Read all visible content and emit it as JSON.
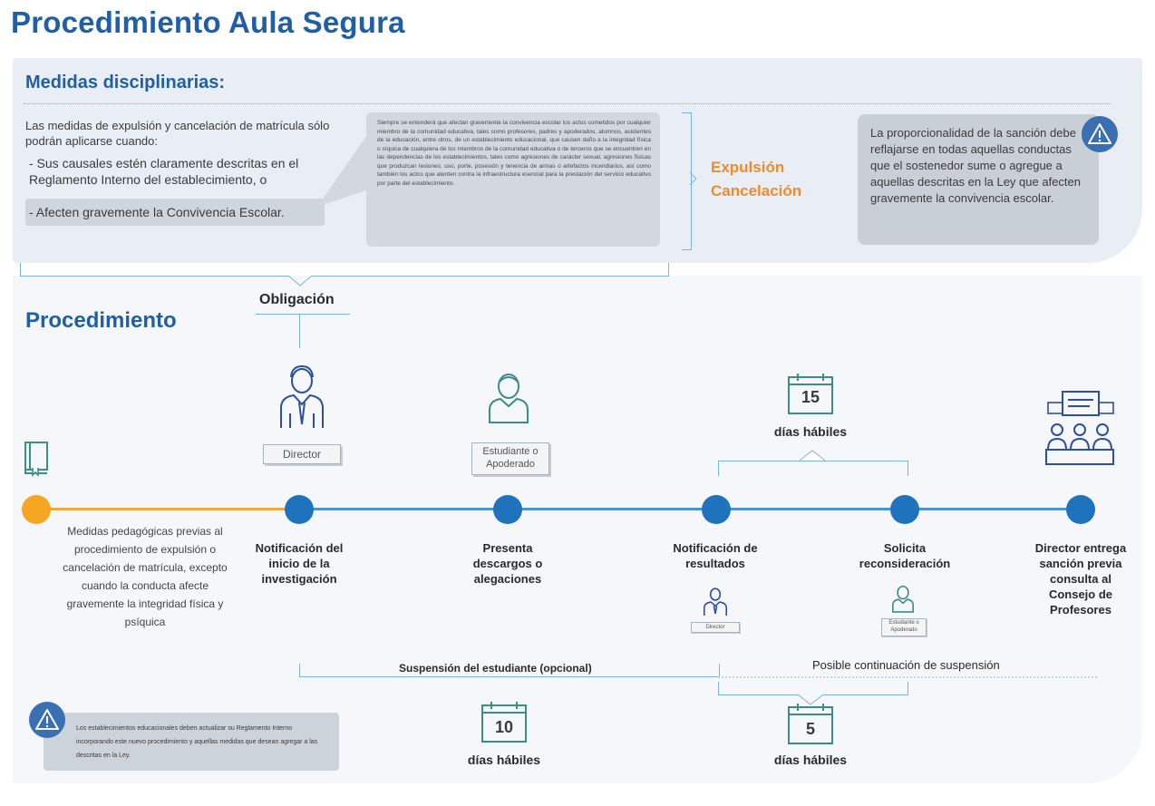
{
  "title": "Procedimiento Aula Segura",
  "medidas": {
    "heading": "Medidas disciplinarias:",
    "intro": "Las medidas de expulsión y cancelación de matrícula sólo podrán aplicarse cuando:",
    "condition1": "- Sus causales estén claramente descritas en el Reglamento Interno del establecimiento, o",
    "condition2": "- Afecten gravemente la Convivencia Escolar.",
    "definition": "Siempre se entenderá que afectan gravemente la convivencia escolar los actos cometidos por cualquier miembro de la comunidad educativa, tales como profesores, padres y apoderados, alumnos, asistentes de la educación, entre otros, de un establecimiento educacional, que causen daño a la integridad física o síquica de cualquiera de los miembros de la comunidad educativa o de terceros que se encuentren en las dependencias de los establecimientos, tales como agresiones de carácter sexual, agresiones físicas que produzcan lesiones, uso, porte, posesión y tenencia de armas o artefactos incendiarios, así como también los actos que atenten contra la infraestructura esencial para la prestación del servicio educativo por parte del establecimiento.",
    "outcome_line1": "Expulsión",
    "outcome_line2": "Cancelación",
    "proportionality": "La proporcionalidad de la sanción debe reflajarse en todas aquellas conductas que el sostenedor sume o agregue a aquellas descritas en la Ley que afecten gravemente la convivencia escolar."
  },
  "obligacion": "Obligación",
  "procedimiento": {
    "heading": "Procedimiento",
    "previous_measures": "Medidas pedagógicas previas al procedimiento de expulsión o cancelación de matrícula, excepto cuando la conducta afecte gravemente la integridad física y psíquica",
    "roles": {
      "director": "Director",
      "estudiante_l1": "Estudiante o",
      "estudiante_l2": "Apoderado"
    },
    "steps": [
      {
        "l1": "Notificación del",
        "l2": "inicio de la",
        "l3": "investigación"
      },
      {
        "l1": "Presenta",
        "l2": "descargos o",
        "l3": "alegaciones"
      },
      {
        "l1": "Notificación de",
        "l2": "resultados",
        "l3": ""
      },
      {
        "l1": "Solicita",
        "l2": "reconsideración",
        "l3": ""
      },
      {
        "l1": "Director entrega",
        "l2": "sanción previa",
        "l3": "consulta al",
        "l4": "Consejo de",
        "l5": "Profesores"
      }
    ],
    "deadlines": [
      {
        "number": "15",
        "label": "días hábiles"
      },
      {
        "number": "10",
        "label": "días hábiles"
      },
      {
        "number": "5",
        "label": "días hábiles"
      }
    ],
    "suspension": "Suspensión del estudiante (opcional)",
    "suspension_continuation": "Posible continuación de suspensión",
    "note": "Los establecimientos educacionales deben actualizar su Reglamento Interno incorporando este nuevo procedimiento y aquellas medidas que desean agregar a las descritas en la Ley."
  },
  "colors": {
    "primary_blue": "#1f5fa6",
    "timeline_blue": "#1f73bc",
    "orange": "#f5a623",
    "accent_orange_text": "#f08a2c"
  },
  "icons": [
    "book-icon",
    "director-person-icon",
    "student-person-icon",
    "calendar-icon",
    "council-meeting-icon",
    "warning-icon"
  ]
}
